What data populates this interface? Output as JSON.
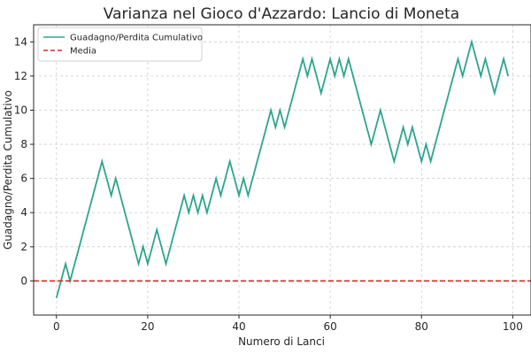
{
  "chart_data": {
    "type": "line",
    "title": "Varianza nel Gioco d'Azzardo: Lancio di Moneta",
    "xlabel": "Numero di Lanci",
    "ylabel": "Guadagno/Perdita Cumulativo",
    "xlim": [
      -5,
      104
    ],
    "ylim": [
      -2,
      15
    ],
    "xticks": [
      0,
      20,
      40,
      60,
      80,
      100
    ],
    "yticks": [
      0,
      2,
      4,
      6,
      8,
      10,
      12,
      14
    ],
    "grid": true,
    "legend_position": "top-left",
    "series": [
      {
        "name": "Guadagno/Perdita Cumulativo",
        "color": "#2ca58d",
        "style": "solid",
        "x": [
          0,
          1,
          2,
          3,
          4,
          5,
          6,
          7,
          8,
          9,
          10,
          11,
          12,
          13,
          14,
          15,
          16,
          17,
          18,
          19,
          20,
          21,
          22,
          23,
          24,
          25,
          26,
          27,
          28,
          29,
          30,
          31,
          32,
          33,
          34,
          35,
          36,
          37,
          38,
          39,
          40,
          41,
          42,
          43,
          44,
          45,
          46,
          47,
          48,
          49,
          50,
          51,
          52,
          53,
          54,
          55,
          56,
          57,
          58,
          59,
          60,
          61,
          62,
          63,
          64,
          65,
          66,
          67,
          68,
          69,
          70,
          71,
          72,
          73,
          74,
          75,
          76,
          77,
          78,
          79,
          80,
          81,
          82,
          83,
          84,
          85,
          86,
          87,
          88,
          89,
          90,
          91,
          92,
          93,
          94,
          95,
          96,
          97,
          98,
          99
        ],
        "y": [
          -1,
          0,
          1,
          0,
          1,
          2,
          3,
          4,
          5,
          6,
          7,
          6,
          5,
          6,
          5,
          4,
          3,
          2,
          1,
          2,
          1,
          2,
          3,
          2,
          1,
          2,
          3,
          4,
          5,
          4,
          5,
          4,
          5,
          4,
          5,
          6,
          5,
          6,
          7,
          6,
          5,
          6,
          5,
          6,
          7,
          8,
          9,
          10,
          9,
          10,
          9,
          10,
          11,
          12,
          13,
          12,
          13,
          12,
          11,
          12,
          13,
          12,
          13,
          12,
          13,
          12,
          11,
          10,
          9,
          8,
          9,
          10,
          9,
          8,
          7,
          8,
          9,
          8,
          9,
          8,
          7,
          8,
          7,
          8,
          9,
          10,
          11,
          12,
          13,
          12,
          13,
          14,
          13,
          12,
          13,
          12,
          11,
          12,
          13,
          12
        ]
      },
      {
        "name": "Media",
        "color": "#d62728",
        "style": "dashed",
        "y_constant": 0
      }
    ]
  }
}
